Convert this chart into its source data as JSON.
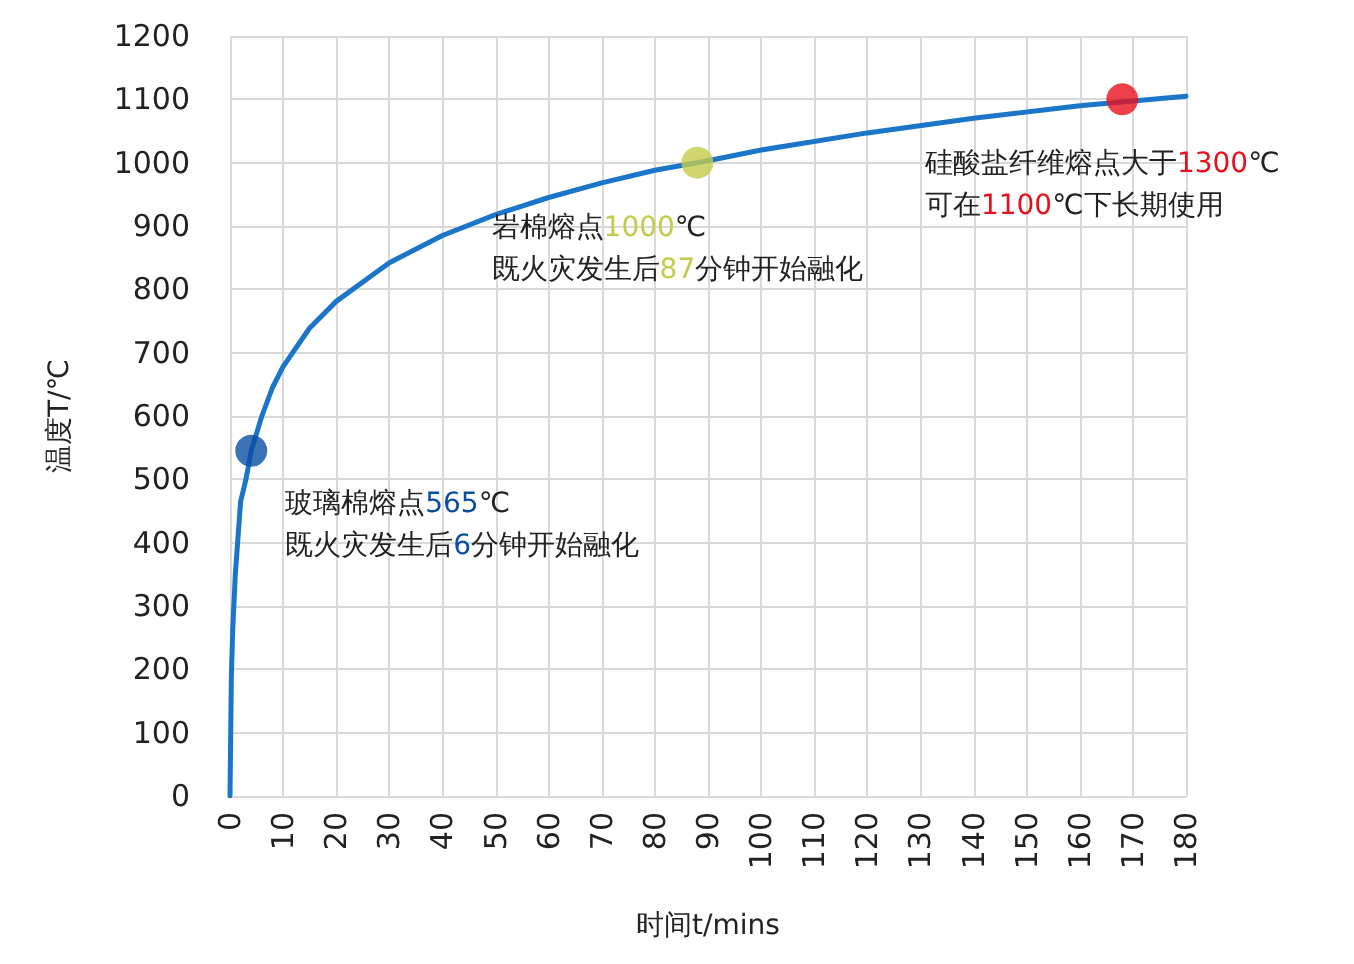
{
  "chart_data": {
    "type": "line",
    "xlabel": "时间t/mins",
    "ylabel": "温度T/℃",
    "xlim": [
      0,
      180
    ],
    "xticks": [
      0,
      10,
      20,
      30,
      40,
      50,
      60,
      70,
      80,
      90,
      100,
      110,
      120,
      130,
      140,
      150,
      160,
      170,
      180
    ],
    "ylim": [
      0,
      1200
    ],
    "yticks": [
      0,
      100,
      200,
      300,
      400,
      500,
      600,
      700,
      800,
      900,
      1000,
      1100,
      1200
    ],
    "grid": true,
    "marker": "none",
    "series": [
      {
        "color": "#1b75c9",
        "x": [
          0,
          0.25,
          0.5,
          1,
          2,
          3,
          4,
          6,
          8,
          10,
          15,
          20,
          30,
          40,
          50,
          60,
          70,
          80,
          90,
          100,
          120,
          140,
          160,
          180
        ],
        "values": [
          0,
          185,
          260,
          350,
          465,
          500,
          545,
          600,
          645,
          678,
          739,
          781,
          842,
          885,
          918,
          945,
          968,
          988,
          1003,
          1020,
          1047,
          1070,
          1090,
          1105
        ]
      },
      {
        "type": "scatter",
        "marker": "circle",
        "color": "#0a4ea3",
        "x": [
          4
        ],
        "values": [
          545
        ]
      },
      {
        "type": "scatter",
        "marker": "circle",
        "color": "#c3cc4a",
        "x": [
          88
        ],
        "values": [
          1000
        ]
      },
      {
        "type": "scatter",
        "marker": "circle",
        "color": "#e8101d",
        "x": [
          168
        ],
        "values": [
          1100
        ]
      }
    ],
    "annotations": [
      {
        "text": "玻璃棉熔点565℃\n既火灾发生后6分钟开始融化",
        "x": 4,
        "y": 545
      },
      {
        "text": "岩棉熔点1000℃\n既火灾发生后87分钟开始融化",
        "x": 88,
        "y": 1000
      },
      "硅酸盐纤维熔点大于1300℃\n可在1100℃下长期使用"
    ]
  }
}
